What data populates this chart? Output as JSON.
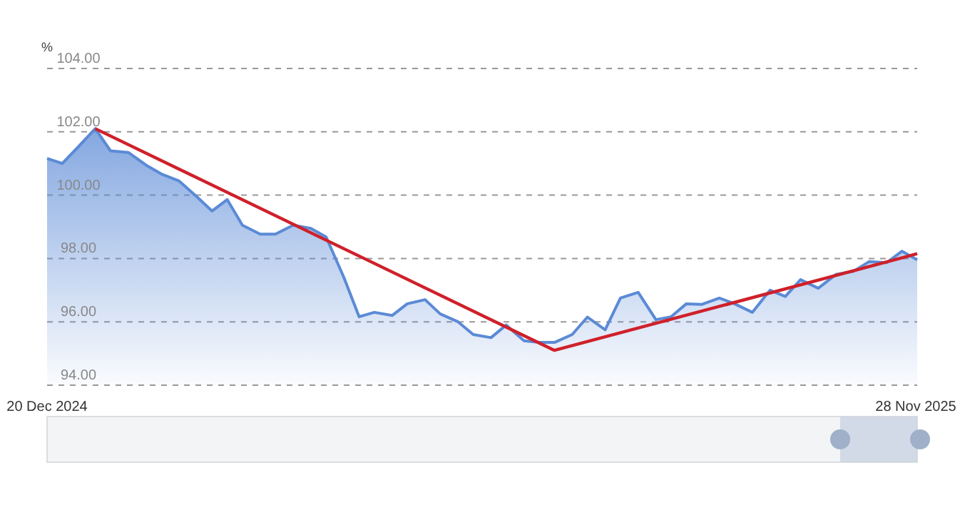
{
  "chart_data": {
    "type": "area",
    "ylabel": "%",
    "xlim": [
      "2024-12-20",
      "2025-11-28"
    ],
    "xticks": [
      {
        "value": "2024-12-20",
        "label": "20 Dec 2024"
      },
      {
        "value": "2025-11-28",
        "label": "28 Nov 2025"
      }
    ],
    "ylim": [
      94,
      104
    ],
    "yticks": [
      {
        "value": 94,
        "label": "94.00"
      },
      {
        "value": 96,
        "label": "96.00"
      },
      {
        "value": 98,
        "label": "98.00"
      },
      {
        "value": 100,
        "label": "100.00"
      },
      {
        "value": 102,
        "label": "102.00"
      },
      {
        "value": 104,
        "label": "104.00"
      }
    ],
    "grid": "y",
    "line_style": "solid",
    "marker": "none",
    "series": [
      {
        "color": "#5b8ad6",
        "x": [
          "2024-12-20",
          "2024-12-26",
          "2025-01-01",
          "2025-01-08",
          "2025-01-14",
          "2025-01-21",
          "2025-01-28",
          "2025-02-03",
          "2025-02-10",
          "2025-02-17",
          "2025-02-23",
          "2025-03-01",
          "2025-03-07",
          "2025-03-14",
          "2025-03-20",
          "2025-03-27",
          "2025-04-03",
          "2025-04-09",
          "2025-04-16",
          "2025-04-22",
          "2025-04-28",
          "2025-05-05",
          "2025-05-11",
          "2025-05-18",
          "2025-05-24",
          "2025-05-31",
          "2025-06-06",
          "2025-06-13",
          "2025-06-19",
          "2025-06-26",
          "2025-07-02",
          "2025-07-08",
          "2025-07-15",
          "2025-07-21",
          "2025-07-28",
          "2025-08-03",
          "2025-08-10",
          "2025-08-17",
          "2025-08-23",
          "2025-08-29",
          "2025-09-04",
          "2025-09-11",
          "2025-09-17",
          "2025-09-24",
          "2025-10-01",
          "2025-10-07",
          "2025-10-13",
          "2025-10-20",
          "2025-10-27",
          "2025-11-03",
          "2025-11-09",
          "2025-11-16",
          "2025-11-22",
          "2025-11-28"
        ],
        "values": [
          101.16,
          101.0,
          101.5,
          102.1,
          101.4,
          101.35,
          100.95,
          100.67,
          100.45,
          99.95,
          99.5,
          99.86,
          99.05,
          98.77,
          98.77,
          99.05,
          98.95,
          98.68,
          97.4,
          96.16,
          96.3,
          96.2,
          96.57,
          96.7,
          96.25,
          96.0,
          95.6,
          95.5,
          95.9,
          95.4,
          95.35,
          95.35,
          95.6,
          96.15,
          95.75,
          96.75,
          96.93,
          96.07,
          96.16,
          96.57,
          96.55,
          96.75,
          96.57,
          96.3,
          97.0,
          96.8,
          97.33,
          97.06,
          97.5,
          97.6,
          97.9,
          97.87,
          98.23,
          97.96
        ]
      },
      {
        "type": "line",
        "color": "#d0202a",
        "x": [
          "2025-01-08",
          "2025-07-08",
          "2025-11-28"
        ],
        "values": [
          102.1,
          95.1,
          98.15
        ]
      }
    ]
  }
}
